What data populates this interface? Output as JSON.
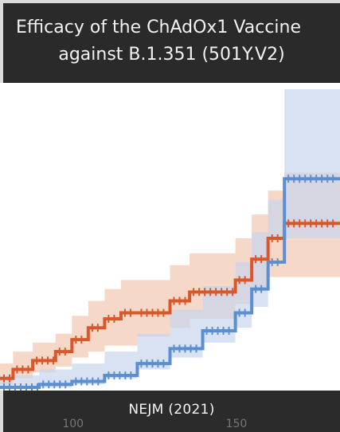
{
  "title": {
    "line1": "Efficacy of the ChAdOx1 Vaccine",
    "line2": "against B.1.351 (501Y.V2)"
  },
  "footer": {
    "caption": "NEJM (2021)"
  },
  "chart_data": {
    "type": "line",
    "title": "Efficacy of the ChAdOx1 Vaccine against B.1.351 (501Y.V2)",
    "xlabel": "",
    "ylabel": "",
    "xlim": [
      78,
      182
    ],
    "ylim": [
      0,
      10
    ],
    "x_ticks": [
      100,
      150
    ],
    "x_tick_labels": [
      "100",
      "150"
    ],
    "grid": false,
    "legend": "none",
    "step": true,
    "series": [
      {
        "color": "#d9572a",
        "band_color": "#f2c7b0",
        "x": [
          78,
          82,
          88,
          95,
          100,
          105,
          110,
          115,
          120,
          130,
          136,
          150,
          155,
          160,
          165,
          182
        ],
        "y": [
          0.3,
          0.6,
          0.9,
          1.2,
          1.6,
          2.0,
          2.3,
          2.5,
          2.5,
          2.9,
          3.2,
          3.6,
          4.3,
          5.0,
          5.5,
          5.5
        ],
        "lower": [
          0.0,
          0.1,
          0.3,
          0.5,
          0.7,
          1.0,
          1.2,
          1.4,
          1.4,
          1.7,
          2.0,
          2.3,
          2.8,
          3.3,
          3.7,
          3.7
        ],
        "upper": [
          0.8,
          1.2,
          1.5,
          1.8,
          2.4,
          2.9,
          3.3,
          3.6,
          3.6,
          4.1,
          4.5,
          5.0,
          5.8,
          6.6,
          7.2,
          7.2
        ]
      },
      {
        "color": "#5b8fd1",
        "band_color": "#c9d6ee",
        "x": [
          78,
          90,
          100,
          110,
          120,
          130,
          140,
          150,
          155,
          160,
          165,
          182
        ],
        "y": [
          0.0,
          0.1,
          0.2,
          0.4,
          0.8,
          1.3,
          1.9,
          2.5,
          3.3,
          4.2,
          7.0,
          7.0
        ],
        "lower": [
          0.0,
          0.0,
          0.0,
          0.1,
          0.3,
          0.6,
          1.0,
          1.5,
          2.0,
          2.7,
          5.0,
          5.0
        ],
        "upper": [
          0.4,
          0.6,
          0.8,
          1.2,
          1.8,
          2.6,
          3.4,
          4.2,
          5.2,
          6.3,
          10.0,
          10.0
        ]
      }
    ]
  }
}
